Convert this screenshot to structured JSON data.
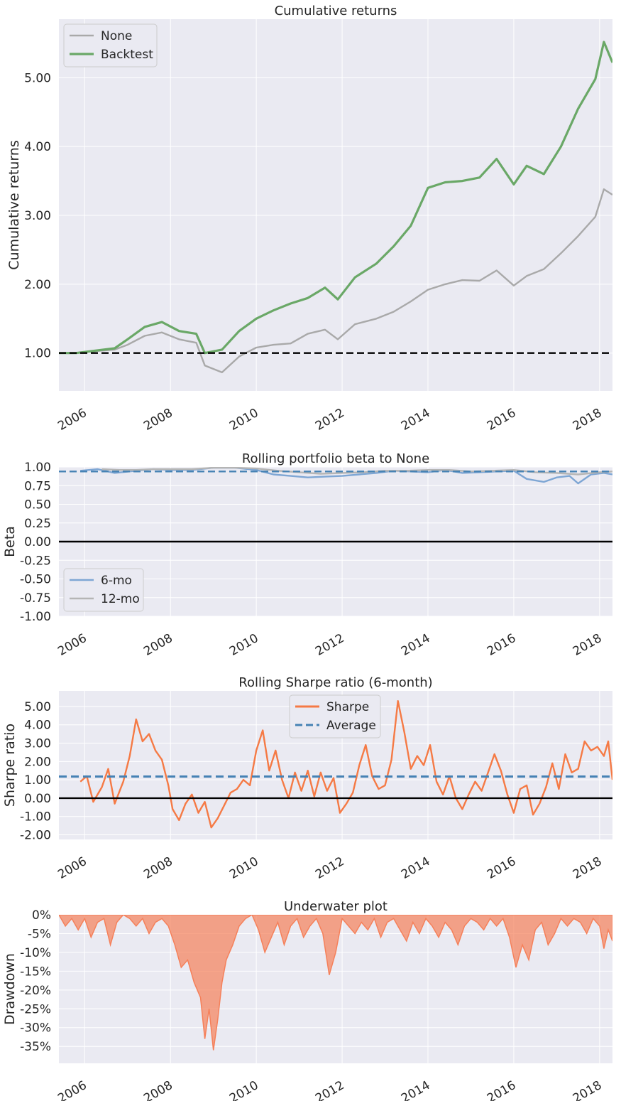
{
  "chart_data": [
    {
      "type": "line",
      "title": "Cumulative returns",
      "xlabel": "",
      "ylabel": "Cumulative returns",
      "xlim": [
        2005.4,
        2018.3
      ],
      "ylim": [
        0.45,
        5.85
      ],
      "yticks": [
        1.0,
        2.0,
        3.0,
        4.0,
        5.0
      ],
      "ytick_labels": [
        "1.00",
        "2.00",
        "3.00",
        "4.00",
        "5.00"
      ],
      "xticks": [
        2006,
        2008,
        2010,
        2012,
        2014,
        2016,
        2018
      ],
      "xtick_labels": [
        "2006",
        "2008",
        "2010",
        "2012",
        "2014",
        "2016",
        "2018"
      ],
      "grid": true,
      "legend": "top-left",
      "reference_lines": [
        {
          "y": 1.0,
          "style": "dashed",
          "color": "#000000"
        }
      ],
      "series": [
        {
          "name": "None",
          "color": "#a9a9a9",
          "x": [
            2005.4,
            2005.8,
            2006.3,
            2006.7,
            2007.0,
            2007.4,
            2007.8,
            2008.2,
            2008.6,
            2008.8,
            2009.2,
            2009.6,
            2010.0,
            2010.4,
            2010.8,
            2011.2,
            2011.6,
            2011.9,
            2012.3,
            2012.8,
            2013.2,
            2013.6,
            2014.0,
            2014.4,
            2014.8,
            2015.2,
            2015.6,
            2016.0,
            2016.3,
            2016.7,
            2017.1,
            2017.5,
            2017.9,
            2018.1,
            2018.3
          ],
          "y": [
            1.0,
            1.0,
            1.03,
            1.05,
            1.12,
            1.25,
            1.3,
            1.2,
            1.15,
            0.82,
            0.72,
            0.95,
            1.08,
            1.12,
            1.14,
            1.28,
            1.34,
            1.2,
            1.42,
            1.5,
            1.6,
            1.75,
            1.92,
            2.0,
            2.06,
            2.05,
            2.2,
            1.98,
            2.12,
            2.22,
            2.45,
            2.7,
            2.98,
            3.38,
            3.3
          ]
        },
        {
          "name": "Backtest",
          "color": "#6aa867",
          "x": [
            2005.4,
            2005.8,
            2006.3,
            2006.7,
            2007.0,
            2007.4,
            2007.8,
            2008.2,
            2008.6,
            2008.8,
            2009.2,
            2009.6,
            2010.0,
            2010.4,
            2010.8,
            2011.2,
            2011.6,
            2011.9,
            2012.3,
            2012.8,
            2013.2,
            2013.6,
            2014.0,
            2014.4,
            2014.8,
            2015.2,
            2015.6,
            2016.0,
            2016.3,
            2016.7,
            2017.1,
            2017.5,
            2017.9,
            2018.1,
            2018.3
          ],
          "y": [
            1.0,
            1.0,
            1.04,
            1.07,
            1.2,
            1.38,
            1.45,
            1.32,
            1.28,
            1.0,
            1.05,
            1.32,
            1.5,
            1.62,
            1.72,
            1.8,
            1.95,
            1.78,
            2.1,
            2.3,
            2.55,
            2.85,
            3.4,
            3.48,
            3.5,
            3.55,
            3.82,
            3.45,
            3.72,
            3.6,
            4.0,
            4.55,
            4.98,
            5.52,
            5.22
          ]
        }
      ]
    },
    {
      "type": "line",
      "title": "Rolling portfolio beta to None",
      "xlabel": "",
      "ylabel": "Beta",
      "xlim": [
        2005.4,
        2018.3
      ],
      "ylim": [
        -1.0,
        1.0
      ],
      "yticks": [
        -1.0,
        -0.75,
        -0.5,
        -0.25,
        0.0,
        0.25,
        0.5,
        0.75,
        1.0
      ],
      "ytick_labels": [
        "-1.00",
        "-0.75",
        "-0.50",
        "-0.25",
        "0.00",
        "0.25",
        "0.50",
        "0.75",
        "1.00"
      ],
      "xticks": [
        2006,
        2008,
        2010,
        2012,
        2014,
        2016,
        2018
      ],
      "xtick_labels": [
        "2006",
        "2008",
        "2010",
        "2012",
        "2014",
        "2016",
        "2018"
      ],
      "grid": true,
      "legend": "bottom-left",
      "reference_lines": [
        {
          "y": 0.0,
          "style": "solid",
          "color": "#000000"
        },
        {
          "y": 0.94,
          "style": "dashed",
          "color": "#4682b4"
        }
      ],
      "series": [
        {
          "name": "6-mo",
          "color": "#7ea6d4",
          "x": [
            2005.9,
            2006.3,
            2006.7,
            2007.2,
            2007.6,
            2008.0,
            2008.5,
            2009.0,
            2009.5,
            2010.0,
            2010.4,
            2010.8,
            2011.2,
            2011.6,
            2012.0,
            2012.4,
            2012.8,
            2013.2,
            2013.6,
            2014.0,
            2014.4,
            2014.8,
            2015.2,
            2015.6,
            2016.0,
            2016.3,
            2016.7,
            2017.0,
            2017.3,
            2017.5,
            2017.8,
            2018.1,
            2018.3
          ],
          "y": [
            0.95,
            0.97,
            0.92,
            0.95,
            0.97,
            0.96,
            0.96,
            0.99,
            0.99,
            0.96,
            0.9,
            0.88,
            0.86,
            0.87,
            0.88,
            0.9,
            0.92,
            0.95,
            0.94,
            0.93,
            0.96,
            0.92,
            0.93,
            0.94,
            0.95,
            0.84,
            0.8,
            0.86,
            0.88,
            0.78,
            0.9,
            0.92,
            0.9
          ]
        },
        {
          "name": "12-mo",
          "color": "#b5b5b5",
          "x": [
            2006.4,
            2006.8,
            2007.2,
            2007.6,
            2008.0,
            2008.5,
            2009.0,
            2009.5,
            2010.0,
            2010.5,
            2011.0,
            2011.5,
            2012.0,
            2012.5,
            2013.0,
            2013.5,
            2014.0,
            2014.5,
            2015.0,
            2015.5,
            2016.0,
            2016.5,
            2017.0,
            2017.5,
            2018.0,
            2018.3
          ],
          "y": [
            0.97,
            0.96,
            0.96,
            0.97,
            0.97,
            0.97,
            0.99,
            0.99,
            0.98,
            0.95,
            0.93,
            0.91,
            0.92,
            0.93,
            0.95,
            0.95,
            0.96,
            0.96,
            0.94,
            0.95,
            0.96,
            0.93,
            0.92,
            0.9,
            0.93,
            0.94
          ]
        }
      ]
    },
    {
      "type": "line",
      "title": "Rolling Sharpe ratio (6-month)",
      "xlabel": "",
      "ylabel": "Sharpe ratio",
      "xlim": [
        2005.4,
        2018.3
      ],
      "ylim": [
        -2.25,
        5.85
      ],
      "yticks": [
        -2.0,
        -1.0,
        0.0,
        1.0,
        2.0,
        3.0,
        4.0,
        5.0
      ],
      "ytick_labels": [
        "-2.00",
        "-1.00",
        "0.00",
        "1.00",
        "2.00",
        "3.00",
        "4.00",
        "5.00"
      ],
      "xticks": [
        2006,
        2008,
        2010,
        2012,
        2014,
        2016,
        2018
      ],
      "xtick_labels": [
        "2006",
        "2008",
        "2010",
        "2012",
        "2014",
        "2016",
        "2018"
      ],
      "grid": true,
      "legend": "top-center",
      "reference_lines": [
        {
          "y": 0.0,
          "style": "solid",
          "color": "#000000"
        }
      ],
      "series": [
        {
          "name": "Sharpe",
          "color": "#f57a45",
          "x": [
            2005.9,
            2006.05,
            2006.2,
            2006.4,
            2006.55,
            2006.7,
            2006.9,
            2007.05,
            2007.2,
            2007.35,
            2007.5,
            2007.65,
            2007.8,
            2007.95,
            2008.05,
            2008.2,
            2008.35,
            2008.5,
            2008.65,
            2008.8,
            2008.95,
            2009.1,
            2009.25,
            2009.4,
            2009.55,
            2009.7,
            2009.85,
            2010.0,
            2010.15,
            2010.3,
            2010.45,
            2010.6,
            2010.75,
            2010.9,
            2011.05,
            2011.2,
            2011.35,
            2011.5,
            2011.65,
            2011.8,
            2011.95,
            2012.1,
            2012.25,
            2012.4,
            2012.55,
            2012.7,
            2012.85,
            2013.0,
            2013.15,
            2013.3,
            2013.45,
            2013.6,
            2013.75,
            2013.9,
            2014.05,
            2014.2,
            2014.35,
            2014.5,
            2014.65,
            2014.8,
            2014.95,
            2015.1,
            2015.25,
            2015.4,
            2015.55,
            2015.7,
            2015.85,
            2016.0,
            2016.15,
            2016.3,
            2016.45,
            2016.6,
            2016.75,
            2016.9,
            2017.05,
            2017.2,
            2017.35,
            2017.5,
            2017.65,
            2017.8,
            2017.95,
            2018.1,
            2018.2,
            2018.3
          ],
          "y": [
            0.9,
            1.2,
            -0.2,
            0.6,
            1.6,
            -0.3,
            0.9,
            2.3,
            4.3,
            3.1,
            3.5,
            2.6,
            2.1,
            0.7,
            -0.6,
            -1.2,
            -0.3,
            0.2,
            -0.8,
            -0.2,
            -1.6,
            -1.1,
            -0.4,
            0.3,
            0.5,
            1.0,
            0.7,
            2.6,
            3.7,
            1.5,
            2.6,
            1.0,
            0.0,
            1.4,
            0.4,
            1.5,
            0.1,
            1.4,
            0.4,
            1.1,
            -0.8,
            -0.3,
            0.3,
            1.8,
            2.9,
            1.2,
            0.5,
            0.7,
            2.1,
            5.3,
            3.6,
            1.6,
            2.3,
            1.8,
            2.9,
            0.9,
            0.2,
            1.2,
            0.0,
            -0.6,
            0.2,
            0.9,
            0.4,
            1.4,
            2.4,
            1.5,
            0.2,
            -0.8,
            0.5,
            0.7,
            -0.9,
            -0.3,
            0.6,
            1.9,
            0.5,
            2.4,
            1.4,
            1.6,
            3.1,
            2.6,
            2.8,
            2.3,
            3.1,
            1.0
          ]
        }
      ],
      "average": {
        "name": "Average",
        "value": 1.18,
        "color": "#4682b4",
        "style": "dashed"
      }
    },
    {
      "type": "area",
      "title": "Underwater plot",
      "xlabel": "",
      "ylabel": "Drawdown",
      "xlim": [
        2005.4,
        2018.3
      ],
      "ylim": [
        -39.5,
        0.0
      ],
      "yticks": [
        0,
        -5,
        -10,
        -15,
        -20,
        -25,
        -30,
        -35
      ],
      "ytick_labels": [
        "0%",
        "-5%",
        "-10%",
        "-15%",
        "-20%",
        "-25%",
        "-30%",
        "-35%"
      ],
      "xticks": [
        2006,
        2008,
        2010,
        2012,
        2014,
        2016,
        2018
      ],
      "xtick_labels": [
        "2006",
        "2008",
        "2010",
        "2012",
        "2014",
        "2016",
        "2018"
      ],
      "grid": true,
      "legend": "none",
      "series": [
        {
          "name": "",
          "color": "#f5805a",
          "x": [
            2005.4,
            2005.55,
            2005.7,
            2005.85,
            2006.0,
            2006.15,
            2006.3,
            2006.45,
            2006.6,
            2006.75,
            2006.9,
            2007.05,
            2007.2,
            2007.35,
            2007.5,
            2007.65,
            2007.8,
            2007.95,
            2008.1,
            2008.25,
            2008.4,
            2008.55,
            2008.7,
            2008.8,
            2008.9,
            2009.0,
            2009.1,
            2009.2,
            2009.3,
            2009.45,
            2009.6,
            2009.75,
            2009.9,
            2010.05,
            2010.2,
            2010.35,
            2010.5,
            2010.65,
            2010.8,
            2010.95,
            2011.1,
            2011.25,
            2011.4,
            2011.55,
            2011.7,
            2011.85,
            2012.0,
            2012.15,
            2012.3,
            2012.45,
            2012.6,
            2012.75,
            2012.9,
            2013.05,
            2013.2,
            2013.35,
            2013.5,
            2013.65,
            2013.8,
            2013.95,
            2014.1,
            2014.25,
            2014.4,
            2014.55,
            2014.7,
            2014.85,
            2015.0,
            2015.15,
            2015.3,
            2015.45,
            2015.6,
            2015.75,
            2015.9,
            2016.05,
            2016.2,
            2016.35,
            2016.5,
            2016.65,
            2016.8,
            2016.95,
            2017.1,
            2017.25,
            2017.4,
            2017.55,
            2017.7,
            2017.85,
            2018.0,
            2018.1,
            2018.2,
            2018.3
          ],
          "y": [
            0,
            -3,
            -1,
            -4,
            -1,
            -6,
            -2,
            -1,
            -8,
            -2,
            0,
            -1,
            -3,
            -1,
            -5,
            -2,
            -1,
            -3,
            -8,
            -14,
            -12,
            -18,
            -22,
            -33,
            -25,
            -36,
            -28,
            -18,
            -12,
            -8,
            -3,
            -1,
            0,
            -4,
            -10,
            -6,
            -2,
            -8,
            -3,
            -1,
            -6,
            -3,
            -1,
            -5,
            -16,
            -10,
            -1,
            -3,
            -5,
            -2,
            -4,
            -1,
            -6,
            -2,
            -1,
            -4,
            -7,
            -2,
            -5,
            -1,
            -3,
            -6,
            -2,
            -4,
            -8,
            -3,
            -1,
            -2,
            -4,
            -1,
            -3,
            -1,
            -6,
            -14,
            -8,
            -12,
            -4,
            -2,
            -8,
            -5,
            -1,
            -3,
            -1,
            -2,
            -5,
            -1,
            -3,
            -9,
            -4,
            -7
          ]
        }
      ]
    }
  ]
}
